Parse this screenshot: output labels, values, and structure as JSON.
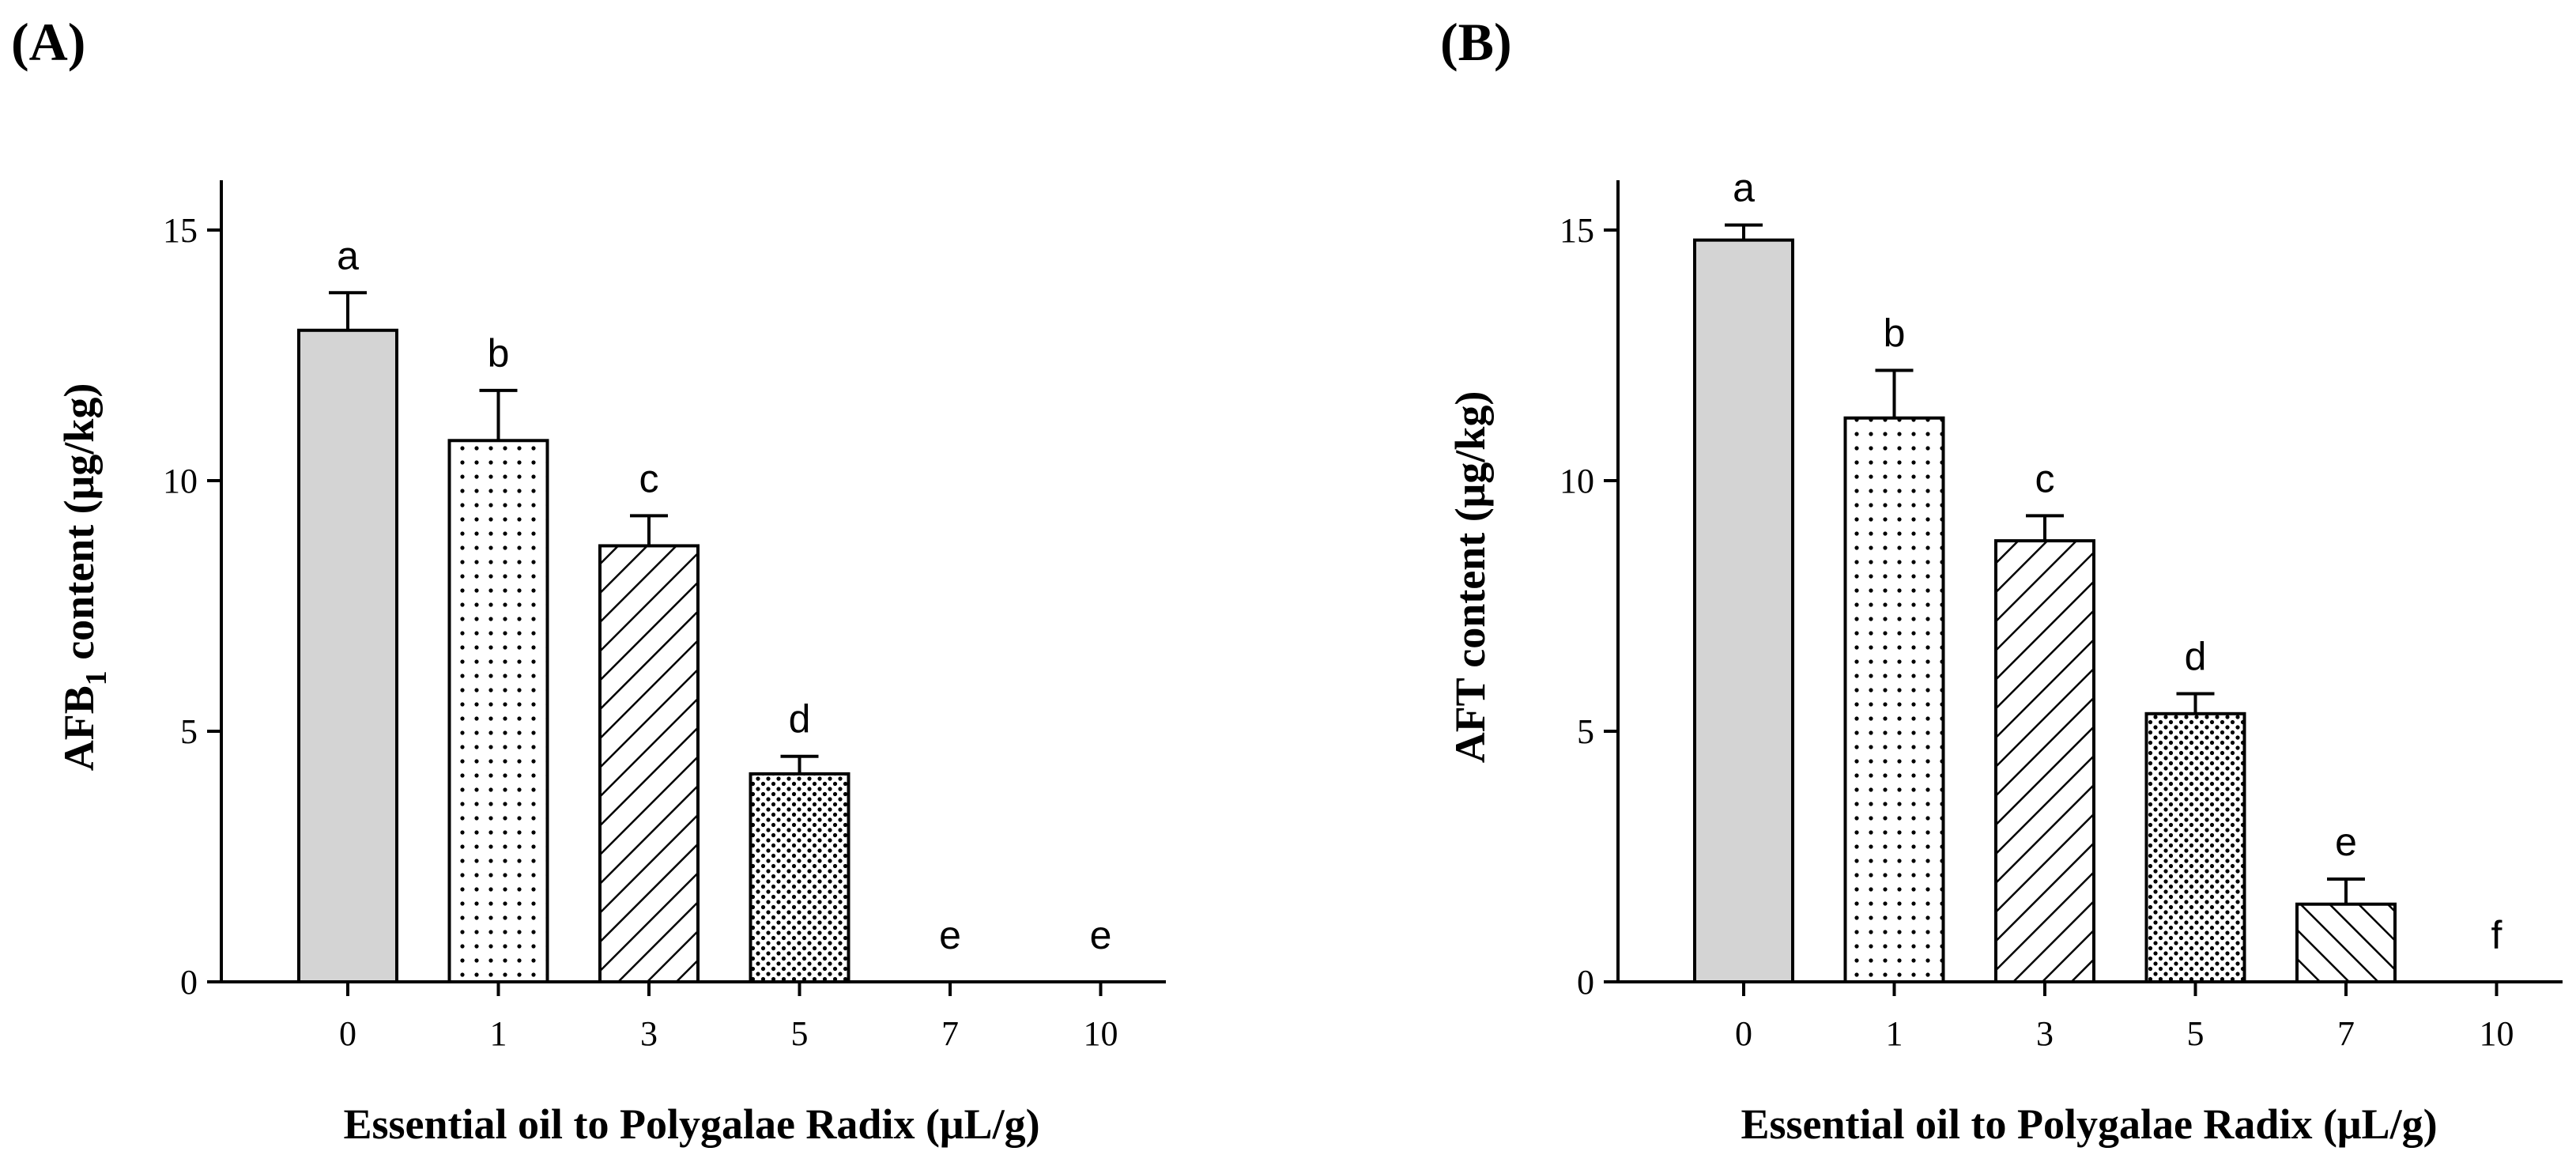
{
  "figure_labels": [
    "(A)",
    "(B)"
  ],
  "chart_data": [
    {
      "type": "bar",
      "panel": "(A)",
      "title": "",
      "xlabel": "Essential oil to Polygalae Radix (μL/g)",
      "ylabel_main": "AFB",
      "ylabel_subscript": "1",
      "ylabel_rest": " content (μg/kg)",
      "ylim": [
        0,
        16
      ],
      "yticks": [
        0,
        5,
        10,
        15
      ],
      "categories": [
        "0",
        "1",
        "3",
        "5",
        "7",
        "10"
      ],
      "values": [
        13.0,
        10.8,
        8.7,
        4.15,
        0,
        0
      ],
      "errors": [
        0.75,
        1.0,
        0.6,
        0.35,
        0,
        0
      ],
      "significance": [
        "a",
        "b",
        "c",
        "d",
        "e",
        "e"
      ],
      "patterns": [
        "solid-gray",
        "dots-sparse",
        "hatch-right",
        "dots-dense",
        "hatch-left",
        "hatch-right"
      ]
    },
    {
      "type": "bar",
      "panel": "(B)",
      "title": "",
      "xlabel": "Essential oil to Polygalae Radix (μL/g)",
      "ylabel_main": "AFT content (μg/kg)",
      "ylabel_subscript": "",
      "ylabel_rest": "",
      "ylim": [
        0,
        16
      ],
      "yticks": [
        0,
        5,
        10,
        15
      ],
      "categories": [
        "0",
        "1",
        "3",
        "5",
        "7",
        "10"
      ],
      "values": [
        14.8,
        11.25,
        8.8,
        5.35,
        1.55,
        0
      ],
      "errors": [
        0.3,
        0.95,
        0.5,
        0.4,
        0.5,
        0
      ],
      "significance": [
        "a",
        "b",
        "c",
        "d",
        "e",
        "f"
      ],
      "patterns": [
        "solid-gray",
        "dots-sparse",
        "hatch-right",
        "dots-dense",
        "hatch-left",
        "hatch-right"
      ]
    }
  ]
}
